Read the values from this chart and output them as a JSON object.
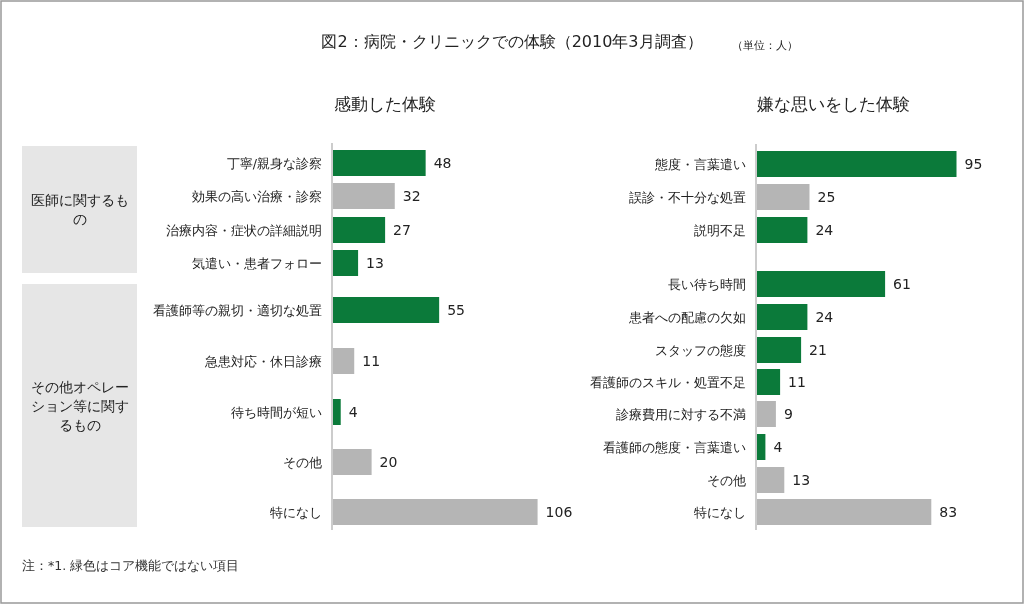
{
  "chart_data": [
    {
      "type": "other",
      "title": "図2：病院・クリニックでの体験（2010年3月調査）",
      "subtitle": "（単位：人）",
      "annotations": [
        "注：*1. 緑色はコア機能ではない項目"
      ]
    },
    {
      "type": "bar",
      "orientation": "horizontal",
      "title": "感動した体験",
      "data_labels": true,
      "categories": [
        "丁寧/親身な診察",
        "効果の高い治療・診察",
        "治療内容・症状の詳細説明",
        "気遣い・患者フォロー",
        "看護師等の親切・適切な処置",
        "急患対応・休日診療",
        "待ち時間が短い",
        "その他",
        "特になし"
      ],
      "values": [
        48,
        32,
        27,
        13,
        55,
        11,
        4,
        20,
        106
      ],
      "colors": [
        "#0b7a3a",
        "#b5b5b5",
        "#0b7a3a",
        "#0b7a3a",
        "#0b7a3a",
        "#b5b5b5",
        "#0b7a3a",
        "#b5b5b5",
        "#b5b5b5"
      ],
      "annotations": [
        "医師に関するもの",
        "その他オペレーション等に関するもの"
      ]
    },
    {
      "type": "bar",
      "orientation": "horizontal",
      "title": "嫌な思いをした体験",
      "data_labels": true,
      "categories": [
        "態度・言葉遣い",
        "誤診・不十分な処置",
        "説明不足",
        "長い待ち時間",
        "患者への配慮の欠如",
        "スタッフの態度",
        "看護師のスキル・処置不足",
        "診療費用に対する不満",
        "看護師の態度・言葉遣い",
        "その他",
        "特になし"
      ],
      "values": [
        95,
        25,
        24,
        61,
        24,
        21,
        11,
        9,
        4,
        13,
        83
      ],
      "colors": [
        "#0b7a3a",
        "#b5b5b5",
        "#0b7a3a",
        "#0b7a3a",
        "#0b7a3a",
        "#0b7a3a",
        "#0b7a3a",
        "#b5b5b5",
        "#0b7a3a",
        "#b5b5b5",
        "#b5b5b5"
      ]
    }
  ]
}
